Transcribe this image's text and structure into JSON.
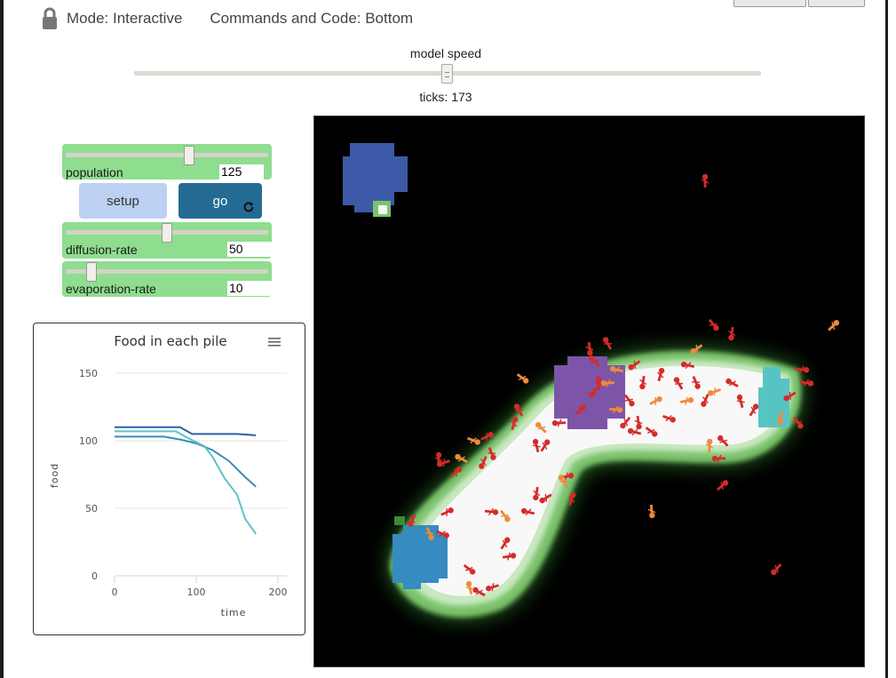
{
  "header": {
    "mode_label": "Mode: Interactive",
    "commands_label": "Commands and Code: Bottom"
  },
  "speed": {
    "title": "model speed",
    "ticks_text": "ticks: 173",
    "value_fraction": 0.5
  },
  "sliders": [
    {
      "label": "population",
      "value": "125",
      "min": 0,
      "max": 200,
      "current": 125
    },
    {
      "label": "diffusion-rate",
      "value": "50",
      "min": 0,
      "max": 99,
      "current": 50
    },
    {
      "label": "evaporation-rate",
      "value": "10",
      "min": 0,
      "max": 99,
      "current": 10
    }
  ],
  "buttons": {
    "setup_label": "setup",
    "go_label": "go"
  },
  "chart_data": {
    "type": "line",
    "title": "Food in each pile",
    "xlabel": "time",
    "ylabel": "food",
    "xlim": [
      0,
      200
    ],
    "ylim": [
      0,
      150
    ],
    "xticks": [
      "0",
      "100",
      "200"
    ],
    "yticks": [
      "0",
      "50",
      "100",
      "150"
    ],
    "grid": true,
    "series": [
      {
        "color": "#2f5da8",
        "x": [
          0,
          80,
          95,
          150,
          173
        ],
        "y": [
          110,
          110,
          105,
          105,
          104
        ]
      },
      {
        "color": "#3a8fb5",
        "x": [
          0,
          60,
          80,
          100,
          120,
          140,
          160,
          173
        ],
        "y": [
          103,
          103,
          101,
          98,
          93,
          85,
          73,
          66
        ]
      },
      {
        "color": "#5cc3c8",
        "x": [
          0,
          75,
          90,
          110,
          120,
          135,
          150,
          160,
          173
        ],
        "y": [
          107,
          107,
          102,
          96,
          88,
          72,
          60,
          42,
          31
        ]
      }
    ]
  },
  "view": {
    "patch_colors": {
      "black": "#000000",
      "white": "#f7f7f7",
      "nest_purple": "#7d55a8",
      "pile_dark_blue": "#3d5aa8",
      "pile_blue": "#368bc1",
      "pile_cyan": "#57c4c4"
    },
    "ant_colors": {
      "searching": "#d62a2a",
      "carrying": "#ef8a3a"
    }
  }
}
